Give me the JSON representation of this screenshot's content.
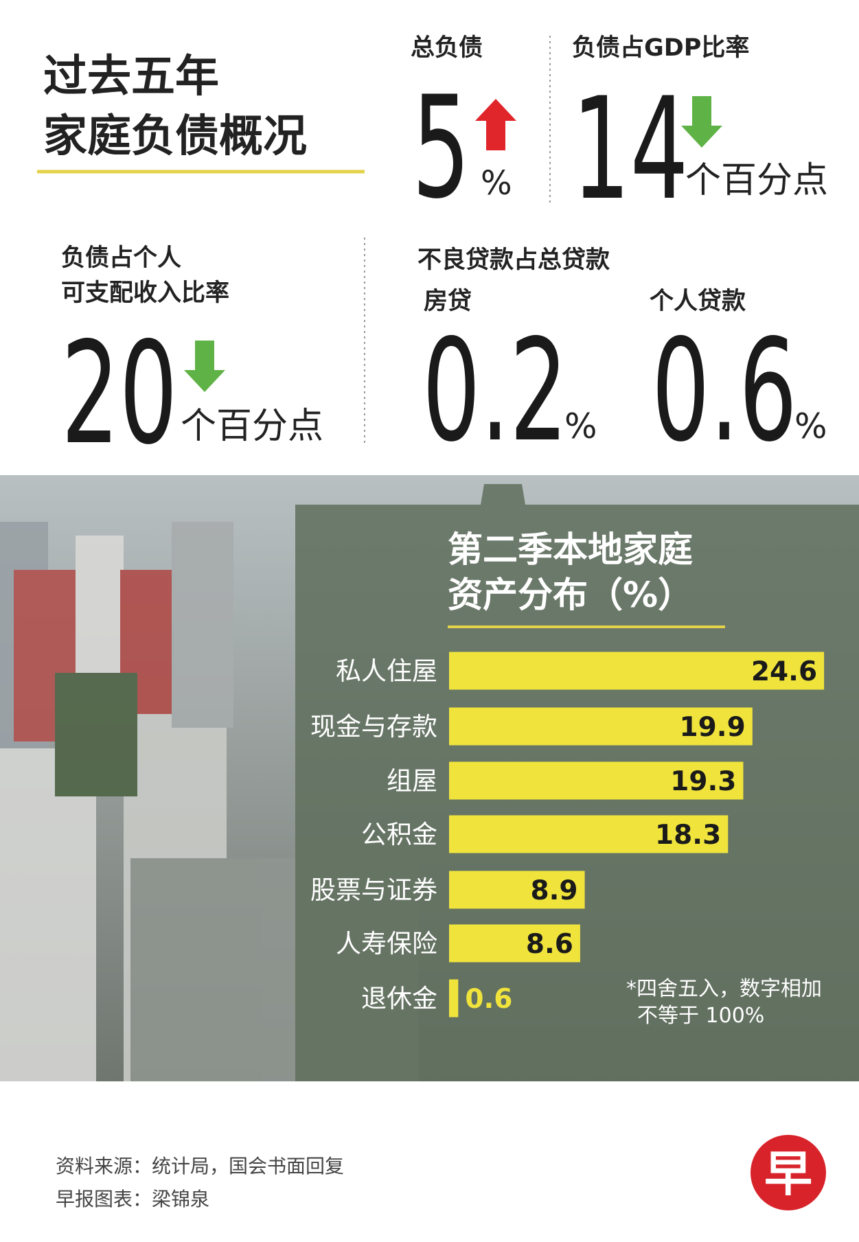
{
  "header": {
    "title_lines": [
      "过去五年",
      "家庭负债概况"
    ]
  },
  "stats": [
    {
      "label_lines": [
        "总负债"
      ],
      "value": 5,
      "unit": "%",
      "direction": "up"
    },
    {
      "label_lines": [
        "负债占GDP比率"
      ],
      "value": 14,
      "unit": "个百分点",
      "direction": "down"
    },
    {
      "label_lines": [
        "负债占个人",
        "可支配收入比率"
      ],
      "value": 20,
      "unit": "个百分点",
      "direction": "down"
    }
  ],
  "npl": {
    "title": "不良贷款占总贷款",
    "items": [
      {
        "label": "房贷",
        "value": 0.2,
        "unit": "%"
      },
      {
        "label": "个人贷款",
        "value": 0.6,
        "unit": "%"
      }
    ]
  },
  "chart_data": {
    "type": "bar",
    "orientation": "horizontal",
    "title_lines": [
      "第二季本地家庭",
      "资产分布（%）"
    ],
    "categories": [
      "私人住屋",
      "现金与存款",
      "组屋",
      "公积金",
      "股票与证券",
      "人寿保险",
      "退休金"
    ],
    "values": [
      24.6,
      19.9,
      19.3,
      18.3,
      8.9,
      8.6,
      0.6
    ],
    "color": "#f0e43c",
    "note_lines": [
      "*四舍五入，数字相加",
      "不等于 100%"
    ]
  },
  "footer": {
    "source": "资料来源：统计局，国会书面回复",
    "credit": "早报图表：梁锦泉"
  },
  "logo": "早"
}
